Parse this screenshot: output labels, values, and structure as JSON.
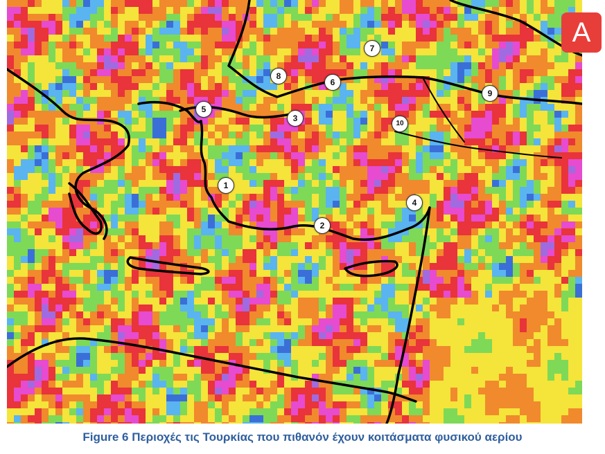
{
  "panel_label": "A",
  "caption": "Figure 6 Περιοχές τις Τουρκίας που πιθανόν έχουν κοιτάσματα φυσικού αερίου",
  "markers": [
    "1",
    "2",
    "3",
    "4",
    "5",
    "6",
    "7",
    "8",
    "9",
    "10"
  ],
  "colors": {
    "badge": "#e83e3a",
    "caption": "#2f5f9e",
    "coastline": "#000000",
    "anomaly_palette": [
      "#3a6fd8",
      "#5ab4f0",
      "#7ed957",
      "#f5e43a",
      "#f08a2c",
      "#e8343a",
      "#e64bd0",
      "#a06be0"
    ]
  }
}
